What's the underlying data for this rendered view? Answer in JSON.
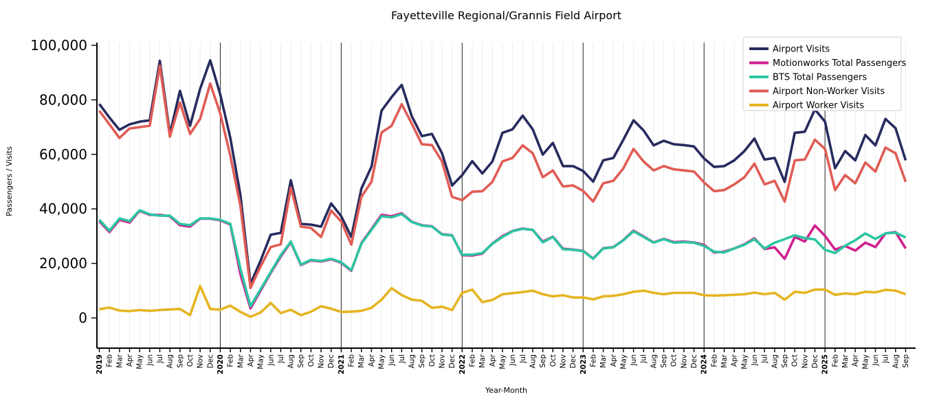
{
  "title": "Fayetteville Regional/Grannis Field Airport",
  "axes": {
    "xlabel": "Year-Month",
    "ylabel": "Passengers / Visits",
    "ytick_labels": [
      "0",
      "20,000",
      "40,000",
      "60,000",
      "80,000",
      "100,000"
    ]
  },
  "chart_data": {
    "type": "line",
    "title": "Fayetteville Regional/Grannis Field Airport",
    "xlabel": "Year-Month",
    "ylabel": "Passengers / Visits",
    "ylim": [
      0,
      100000
    ],
    "yticks": [
      0,
      20000,
      40000,
      60000,
      80000,
      100000
    ],
    "grid": "vertical-monthly",
    "year_separator_indices": [
      12,
      24,
      36,
      48,
      60,
      72
    ],
    "legend_position": "upper right",
    "categories": [
      "2019",
      "Feb",
      "Mar",
      "Apr",
      "May",
      "Jun",
      "Jul",
      "Aug",
      "Sep",
      "Oct",
      "Nov",
      "Dec",
      "2020",
      "Feb",
      "Mar",
      "Apr",
      "May",
      "Jun",
      "Jul",
      "Aug",
      "Sep",
      "Oct",
      "Nov",
      "Dec",
      "2021",
      "Feb",
      "Mar",
      "Apr",
      "May",
      "Jun",
      "Jul",
      "Aug",
      "Sep",
      "Oct",
      "Nov",
      "Dec",
      "2022",
      "Feb",
      "Mar",
      "Apr",
      "May",
      "Jun",
      "Jul",
      "Aug",
      "Sep",
      "Oct",
      "Nov",
      "Dec",
      "2023",
      "Feb",
      "Mar",
      "Apr",
      "May",
      "Jun",
      "Jul",
      "Aug",
      "Sep",
      "Oct",
      "Nov",
      "Dec",
      "2024",
      "Feb",
      "Mar",
      "Apr",
      "May",
      "Jun",
      "Jul",
      "Aug",
      "Sep",
      "Oct",
      "Nov",
      "Dec",
      "2025",
      "Feb",
      "Mar",
      "Apr",
      "May",
      "Jun",
      "Jul",
      "Aug",
      "Sep"
    ],
    "series": [
      {
        "name": "Airport Visits",
        "color": "#272b5e",
        "values": [
          78500,
          73500,
          69000,
          71000,
          72000,
          72500,
          94300,
          67500,
          83300,
          70500,
          84000,
          94500,
          82000,
          66000,
          45000,
          12500,
          21000,
          30500,
          31200,
          50500,
          34500,
          34200,
          33500,
          42000,
          37300,
          29700,
          47400,
          55500,
          76000,
          81000,
          85500,
          74000,
          66700,
          67500,
          60400,
          48600,
          52400,
          57500,
          53000,
          57400,
          67900,
          69200,
          74200,
          69200,
          59900,
          64200,
          55700,
          55700,
          53900,
          50000,
          57800,
          58700,
          65400,
          72500,
          68800,
          63300,
          65000,
          63700,
          63400,
          62900,
          58500,
          55400,
          55700,
          57800,
          61200,
          65800,
          58100,
          58700,
          49900,
          67900,
          68300,
          76500,
          72000,
          54900,
          61200,
          57800,
          67100,
          63300,
          73000,
          69600,
          57800
        ]
      },
      {
        "name": "Motionworks Total Passengers",
        "color": "#d21f8f",
        "values": [
          35500,
          31500,
          36000,
          35000,
          39300,
          37800,
          37800,
          37300,
          34000,
          33500,
          36400,
          36400,
          35800,
          34300,
          16000,
          3500,
          10000,
          16500,
          22500,
          27800,
          19400,
          21100,
          20700,
          21500,
          20200,
          17300,
          27400,
          32600,
          37800,
          37300,
          38400,
          35300,
          34000,
          33600,
          30700,
          30300,
          23000,
          22900,
          23600,
          27300,
          30000,
          31900,
          32800,
          32300,
          28000,
          29800,
          25400,
          25100,
          24600,
          21800,
          25600,
          26000,
          28600,
          32000,
          29900,
          27700,
          29000,
          27800,
          28000,
          27700,
          26800,
          24000,
          24300,
          25500,
          27000,
          29200,
          25300,
          25900,
          21700,
          29700,
          28000,
          33900,
          30100,
          25100,
          26400,
          24700,
          27600,
          26000,
          31000,
          31500,
          25500
        ]
      },
      {
        "name": "BTS Total Passengers",
        "color": "#2cc5a2",
        "values": [
          36000,
          32000,
          36500,
          35500,
          39500,
          38000,
          37500,
          37500,
          34500,
          34000,
          36500,
          36500,
          36000,
          34500,
          18000,
          4300,
          10500,
          16800,
          23000,
          28000,
          19600,
          21300,
          20900,
          21700,
          20400,
          17500,
          27200,
          32300,
          37300,
          36900,
          38100,
          35200,
          33900,
          33500,
          30600,
          30200,
          23200,
          23200,
          23800,
          27200,
          29700,
          31800,
          32700,
          32300,
          27700,
          29700,
          25200,
          25000,
          24500,
          21700,
          25500,
          25900,
          28500,
          31800,
          29700,
          27600,
          28900,
          27600,
          27800,
          27600,
          26400,
          24300,
          24000,
          25500,
          26800,
          28900,
          25500,
          27600,
          28900,
          30300,
          29300,
          28800,
          25000,
          23800,
          26500,
          28500,
          31000,
          29000,
          31000,
          31300,
          29500
        ]
      },
      {
        "name": "Airport Non-Worker Visits",
        "color": "#e05c55",
        "values": [
          76000,
          71000,
          66000,
          69500,
          70000,
          70500,
          92500,
          66500,
          79000,
          67500,
          73000,
          86000,
          75000,
          59500,
          41000,
          11000,
          18900,
          26000,
          27000,
          47800,
          33500,
          33000,
          29700,
          39400,
          35400,
          26900,
          44400,
          50000,
          68000,
          70500,
          78400,
          71300,
          63700,
          63400,
          57400,
          44400,
          43200,
          46300,
          46500,
          49900,
          57400,
          58700,
          63300,
          60400,
          51600,
          54100,
          48200,
          48600,
          46600,
          42700,
          49400,
          50300,
          54900,
          62000,
          57400,
          54100,
          55700,
          54500,
          54100,
          53700,
          49700,
          46500,
          46900,
          49000,
          51600,
          56600,
          49000,
          50300,
          42700,
          57800,
          58100,
          65400,
          62000,
          46900,
          52400,
          49400,
          57000,
          53700,
          62500,
          60400,
          49900
        ]
      },
      {
        "name": "Airport Worker Visits",
        "color": "#e6b422",
        "values": [
          3200,
          3800,
          2700,
          2500,
          2900,
          2600,
          2900,
          3100,
          3300,
          1000,
          11700,
          3300,
          3000,
          4500,
          2200,
          400,
          2000,
          5500,
          1800,
          3000,
          1000,
          2300,
          4300,
          3400,
          2200,
          2300,
          2600,
          3700,
          6700,
          10900,
          8400,
          6700,
          6300,
          3700,
          4100,
          2900,
          9200,
          10400,
          5800,
          6600,
          8700,
          9100,
          9500,
          10000,
          8700,
          7900,
          8300,
          7500,
          7500,
          6800,
          7900,
          8100,
          8700,
          9600,
          10000,
          9200,
          8700,
          9200,
          9200,
          9200,
          8300,
          8200,
          8300,
          8500,
          8700,
          9300,
          8700,
          9200,
          6700,
          9600,
          9200,
          10400,
          10400,
          8500,
          9000,
          8700,
          9600,
          9400,
          10300,
          10000,
          8700
        ]
      }
    ]
  }
}
